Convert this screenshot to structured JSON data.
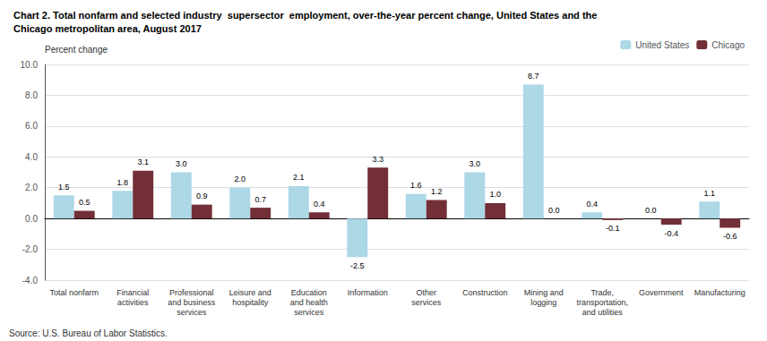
{
  "chart_data": {
    "type": "bar",
    "title": "Chart 2. Total nonfarm and selected industry  supersector  employment, over-the-year percent change, United States and the\nChicago metropolitan area, August 2017",
    "ylabel": "Percent change",
    "source": "Source: U.S. Bureau of Labor Statistics.",
    "categories": [
      "Total nonfarm",
      "Financial\nactivities",
      "Professional\nand business\nservices",
      "Leisure and\nhospitality",
      "Education\nand health\nservices",
      "Information",
      "Other\nservices",
      "Construction",
      "Mining and\nlogging",
      "Trade,\ntransportation,\nand utilities",
      "Government",
      "Manufacturing"
    ],
    "series": [
      {
        "name": "United States",
        "color": "#add8e6",
        "values": [
          1.5,
          1.8,
          3.0,
          2.0,
          2.1,
          -2.5,
          1.6,
          3.0,
          8.7,
          0.4,
          0.0,
          1.1
        ],
        "value_labels": [
          "1.5",
          "1.8",
          "3.0",
          "2.0",
          "2.1",
          "-2.5",
          "1.6",
          "3.0",
          "8.7",
          "0.4",
          "0.0",
          "1.1"
        ]
      },
      {
        "name": "Chicago",
        "color": "#722F37",
        "values": [
          0.5,
          3.1,
          0.9,
          0.7,
          0.4,
          3.3,
          1.2,
          1.0,
          0.0,
          -0.1,
          -0.4,
          -0.6
        ],
        "value_labels": [
          "0.5",
          "3.1",
          "0.9",
          "0.7",
          "0.4",
          "3.3",
          "1.2",
          "1.0",
          "0.0",
          "-0.1",
          "-0.4",
          "-0.6"
        ]
      }
    ],
    "ylim": [
      -4.0,
      10.0
    ],
    "yticks": [
      {
        "value": -4.0,
        "label": "-4.0"
      },
      {
        "value": -2.0,
        "label": "-2.0"
      },
      {
        "value": 0.0,
        "label": "0.0"
      },
      {
        "value": 2.0,
        "label": "2.0"
      },
      {
        "value": 4.0,
        "label": "4.0"
      },
      {
        "value": 6.0,
        "label": "6.0"
      },
      {
        "value": 8.0,
        "label": "8.0"
      },
      {
        "value": 10.0,
        "label": "10.0"
      }
    ],
    "grid": true,
    "legend": "upper right",
    "data_labels": true
  }
}
